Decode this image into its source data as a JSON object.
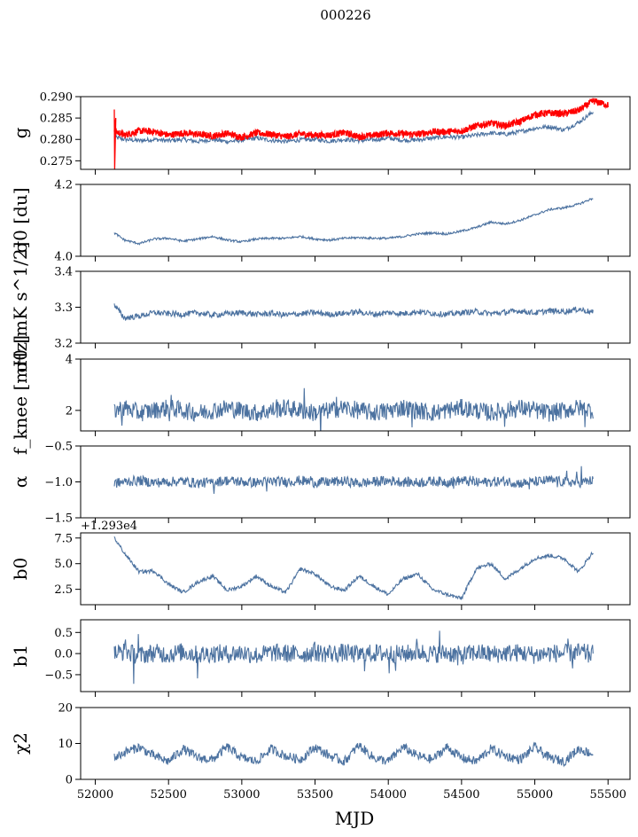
{
  "figure": {
    "title": "000226",
    "xlabel": "MJD"
  },
  "colors": {
    "series": "#4c72a0",
    "overlay": "#ff0000",
    "axis": "#000000"
  },
  "chart_data": [
    {
      "type": "line",
      "panel": "g",
      "ylabel": "g",
      "ylim": [
        0.273,
        0.29
      ],
      "yticks": [
        0.275,
        0.28,
        0.285,
        0.29
      ],
      "ytick_labels": [
        "0.275",
        "0.280",
        "0.285",
        "0.290"
      ],
      "xlim": [
        51900,
        55650
      ],
      "series": [
        {
          "name": "blue",
          "color": "#4c72a0",
          "x": [
            52130,
            52200,
            52300,
            52400,
            52500,
            52600,
            52700,
            52800,
            52900,
            53000,
            53100,
            53200,
            53300,
            53400,
            53500,
            53600,
            53700,
            53800,
            53900,
            54000,
            54100,
            54200,
            54300,
            54400,
            54500,
            54600,
            54700,
            54800,
            54900,
            55000,
            55100,
            55200,
            55300,
            55400
          ],
          "y": [
            0.2805,
            0.28,
            0.2797,
            0.28,
            0.2797,
            0.28,
            0.2795,
            0.28,
            0.2795,
            0.2798,
            0.2803,
            0.2798,
            0.2795,
            0.2799,
            0.28,
            0.2796,
            0.28,
            0.2797,
            0.2799,
            0.2803,
            0.2798,
            0.2799,
            0.2803,
            0.2806,
            0.2805,
            0.281,
            0.2815,
            0.2812,
            0.2818,
            0.2826,
            0.283,
            0.2822,
            0.284,
            0.2865
          ]
        },
        {
          "name": "red",
          "color": "#ff0000",
          "x": [
            52130,
            52200,
            52300,
            52400,
            52500,
            52600,
            52700,
            52800,
            52900,
            53000,
            53100,
            53200,
            53300,
            53400,
            53500,
            53600,
            53700,
            53800,
            53900,
            54000,
            54100,
            54200,
            54300,
            54400,
            54500,
            54600,
            54700,
            54800,
            54900,
            55000,
            55100,
            55200,
            55300,
            55400,
            55500
          ],
          "y": [
            0.282,
            0.281,
            0.282,
            0.2818,
            0.281,
            0.2815,
            0.2812,
            0.2808,
            0.2814,
            0.2805,
            0.2815,
            0.2812,
            0.2806,
            0.2813,
            0.281,
            0.281,
            0.2816,
            0.2806,
            0.281,
            0.2815,
            0.2813,
            0.2812,
            0.2818,
            0.2818,
            0.282,
            0.2832,
            0.2838,
            0.2832,
            0.2842,
            0.2858,
            0.2862,
            0.286,
            0.2868,
            0.289,
            0.288
          ]
        }
      ]
    },
    {
      "type": "line",
      "panel": "sigma0-du",
      "ylabel": "σ0 [du]",
      "ylim": [
        4.0,
        4.2
      ],
      "yticks": [
        4.0,
        4.2
      ],
      "ytick_labels": [
        "4.0",
        "4.2"
      ],
      "xlim": [
        51900,
        55650
      ],
      "series": [
        {
          "name": "sigma0_du",
          "color": "#4c72a0",
          "x": [
            52130,
            52200,
            52300,
            52400,
            52500,
            52600,
            52700,
            52800,
            52900,
            53000,
            53100,
            53200,
            53300,
            53400,
            53500,
            53600,
            53700,
            53800,
            53900,
            54000,
            54100,
            54200,
            54300,
            54400,
            54500,
            54600,
            54700,
            54800,
            54900,
            55000,
            55100,
            55200,
            55300,
            55400
          ],
          "y": [
            4.065,
            4.045,
            4.035,
            4.048,
            4.05,
            4.042,
            4.048,
            4.055,
            4.045,
            4.04,
            4.048,
            4.05,
            4.05,
            4.055,
            4.048,
            4.045,
            4.05,
            4.052,
            4.05,
            4.05,
            4.055,
            4.062,
            4.065,
            4.062,
            4.07,
            4.08,
            4.095,
            4.09,
            4.1,
            4.115,
            4.13,
            4.135,
            4.145,
            4.162
          ]
        }
      ]
    },
    {
      "type": "line",
      "panel": "sigma0-mk",
      "ylabel": "σ0 [mK s^1/2]",
      "ylim": [
        3.2,
        3.4
      ],
      "yticks": [
        3.2,
        3.3,
        3.4
      ],
      "ytick_labels": [
        "3.2",
        "3.3",
        "3.4"
      ],
      "xlim": [
        51900,
        55650
      ],
      "series": [
        {
          "name": "sigma0_mk",
          "color": "#4c72a0",
          "x": [
            52130,
            52200,
            52300,
            52400,
            52500,
            52600,
            52700,
            52800,
            52900,
            53000,
            53100,
            53200,
            53300,
            53400,
            53500,
            53600,
            53700,
            53800,
            53900,
            54000,
            54100,
            54200,
            54300,
            54400,
            54500,
            54600,
            54700,
            54800,
            54900,
            55000,
            55100,
            55200,
            55300,
            55400
          ],
          "y": [
            3.305,
            3.27,
            3.275,
            3.285,
            3.282,
            3.28,
            3.285,
            3.278,
            3.282,
            3.285,
            3.28,
            3.283,
            3.278,
            3.282,
            3.285,
            3.28,
            3.283,
            3.287,
            3.28,
            3.285,
            3.282,
            3.288,
            3.283,
            3.28,
            3.285,
            3.288,
            3.282,
            3.286,
            3.29,
            3.284,
            3.29,
            3.288,
            3.295,
            3.285
          ]
        }
      ]
    },
    {
      "type": "line",
      "panel": "fknee",
      "ylabel": "f_knee [mHz]",
      "ylim": [
        1.2,
        4.0
      ],
      "yticks": [
        2,
        4
      ],
      "ytick_labels": [
        "2",
        "4"
      ],
      "xlim": [
        51900,
        55650
      ],
      "series": [
        {
          "name": "fknee",
          "color": "#4c72a0",
          "x": [
            52130,
            52200,
            52300,
            52400,
            52500,
            52600,
            52700,
            52800,
            52900,
            53000,
            53100,
            53200,
            53300,
            53400,
            53500,
            53600,
            53700,
            53800,
            53900,
            54000,
            54100,
            54200,
            54300,
            54400,
            54500,
            54600,
            54700,
            54800,
            54900,
            55000,
            55100,
            55200,
            55300,
            55400
          ],
          "y": [
            2.0,
            2.1,
            1.9,
            2.0,
            2.1,
            2.0,
            1.9,
            2.0,
            2.1,
            2.0,
            1.9,
            2.0,
            2.1,
            2.0,
            1.9,
            2.0,
            2.1,
            2.0,
            1.9,
            2.0,
            2.1,
            2.0,
            1.9,
            2.0,
            2.1,
            2.0,
            1.9,
            2.0,
            2.1,
            2.0,
            1.9,
            2.0,
            2.1,
            2.0
          ]
        }
      ]
    },
    {
      "type": "line",
      "panel": "alpha",
      "ylabel": "α",
      "ylim": [
        -1.5,
        -0.5
      ],
      "yticks": [
        -1.5,
        -1.0,
        -0.5
      ],
      "ytick_labels": [
        "−1.5",
        "−1.0",
        "−0.5"
      ],
      "xlim": [
        51900,
        55650
      ],
      "series": [
        {
          "name": "alpha",
          "color": "#4c72a0",
          "x": [
            52130,
            52200,
            52300,
            52400,
            52500,
            52600,
            52700,
            52800,
            52900,
            53000,
            53100,
            53200,
            53300,
            53400,
            53500,
            53600,
            53700,
            53800,
            53900,
            54000,
            54100,
            54200,
            54300,
            54400,
            54500,
            54600,
            54700,
            54800,
            54900,
            55000,
            55100,
            55200,
            55300,
            55400
          ],
          "y": [
            -1.02,
            -1.0,
            -0.98,
            -1.01,
            -1.0,
            -0.99,
            -1.02,
            -1.0,
            -0.98,
            -1.0,
            -1.01,
            -0.99,
            -1.0,
            -0.98,
            -1.01,
            -1.0,
            -0.99,
            -1.02,
            -1.0,
            -0.98,
            -1.0,
            -1.01,
            -0.99,
            -1.0,
            -0.98,
            -1.01,
            -1.0,
            -0.99,
            -1.02,
            -1.0,
            -0.98,
            -1.0,
            -1.01,
            -0.98
          ]
        }
      ]
    },
    {
      "type": "line",
      "panel": "b0",
      "ylabel": "b0",
      "ylim": [
        1.0,
        8.0
      ],
      "offset_text": "+1.293e4",
      "yticks": [
        2.5,
        5.0,
        7.5
      ],
      "ytick_labels": [
        "2.5",
        "5.0",
        "7.5"
      ],
      "xlim": [
        51900,
        55650
      ],
      "series": [
        {
          "name": "b0",
          "color": "#4c72a0",
          "x": [
            52130,
            52200,
            52300,
            52400,
            52500,
            52600,
            52700,
            52800,
            52900,
            53000,
            53100,
            53200,
            53300,
            53400,
            53500,
            53600,
            53700,
            53800,
            53900,
            54000,
            54100,
            54200,
            54300,
            54400,
            54500,
            54600,
            54700,
            54800,
            54900,
            55000,
            55100,
            55200,
            55300,
            55400
          ],
          "y": [
            7.5,
            6.0,
            4.2,
            4.3,
            3.0,
            2.2,
            3.2,
            3.8,
            2.4,
            2.8,
            3.8,
            2.8,
            2.2,
            4.5,
            4.0,
            2.8,
            2.4,
            3.8,
            2.8,
            2.0,
            3.5,
            4.0,
            2.5,
            2.0,
            1.6,
            4.5,
            5.0,
            3.5,
            4.5,
            5.5,
            5.8,
            5.5,
            4.2,
            6.2
          ]
        }
      ]
    },
    {
      "type": "line",
      "panel": "b1",
      "ylabel": "b1",
      "ylim": [
        -0.9,
        0.8
      ],
      "yticks": [
        -0.5,
        0.0,
        0.5
      ],
      "ytick_labels": [
        "−0.5",
        "0.0",
        "0.5"
      ],
      "xlim": [
        51900,
        55650
      ],
      "series": [
        {
          "name": "b1",
          "color": "#4c72a0",
          "x": [
            52130,
            52200,
            52300,
            52400,
            52500,
            52600,
            52700,
            52800,
            52900,
            53000,
            53100,
            53200,
            53300,
            53400,
            53500,
            53600,
            53700,
            53800,
            53900,
            54000,
            54100,
            54200,
            54300,
            54400,
            54500,
            54600,
            54700,
            54800,
            54900,
            55000,
            55100,
            55200,
            55300,
            55400
          ],
          "y": [
            0.0,
            0.05,
            -0.05,
            0.02,
            -0.02,
            0.04,
            -0.03,
            0.01,
            -0.01,
            0.03,
            -0.04,
            0.02,
            0.0,
            -0.02,
            0.03,
            -0.01,
            0.02,
            -0.03,
            0.01,
            0.0,
            -0.02,
            0.04,
            -0.01,
            0.02,
            -0.05,
            0.03,
            -0.02,
            0.01,
            0.02,
            -0.03,
            0.01,
            0.0,
            0.03,
            -0.01
          ]
        }
      ]
    },
    {
      "type": "line",
      "panel": "chi2",
      "ylabel": "χ2",
      "ylim": [
        0,
        20
      ],
      "yticks": [
        0,
        10,
        20
      ],
      "ytick_labels": [
        "0",
        "10",
        "20"
      ],
      "xlim": [
        51900,
        55650
      ],
      "xticks": [
        52000,
        52500,
        53000,
        53500,
        54000,
        54500,
        55000,
        55500
      ],
      "xtick_labels": [
        "52000",
        "52500",
        "53000",
        "53500",
        "54000",
        "54500",
        "55000",
        "55500"
      ],
      "series": [
        {
          "name": "chi2",
          "color": "#4c72a0",
          "x": [
            52130,
            52200,
            52300,
            52400,
            52500,
            52600,
            52700,
            52800,
            52900,
            53000,
            53100,
            53200,
            53300,
            53400,
            53500,
            53600,
            53700,
            53800,
            53900,
            54000,
            54100,
            54200,
            54300,
            54400,
            54500,
            54600,
            54700,
            54800,
            54900,
            55000,
            55100,
            55200,
            55300,
            55400
          ],
          "y": [
            6.0,
            7.5,
            9.0,
            6.5,
            5.0,
            8.5,
            6.0,
            5.5,
            9.0,
            6.0,
            5.0,
            8.5,
            6.5,
            5.5,
            9.0,
            6.5,
            5.0,
            9.5,
            6.0,
            5.0,
            9.0,
            6.5,
            5.5,
            9.0,
            6.0,
            5.0,
            8.5,
            6.5,
            5.5,
            9.0,
            6.0,
            5.0,
            8.5,
            7.0
          ]
        }
      ]
    }
  ]
}
